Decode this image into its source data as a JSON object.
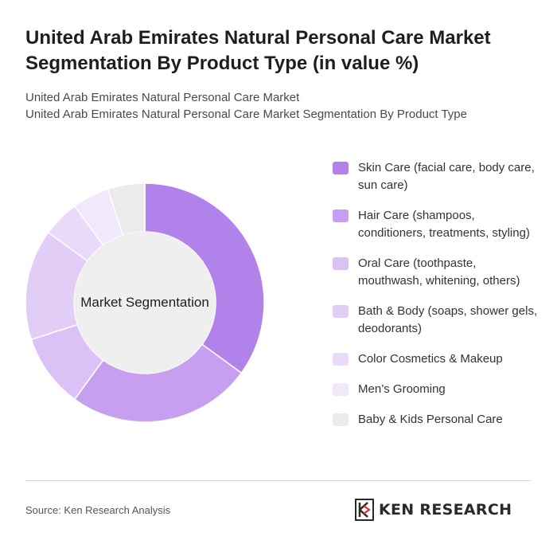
{
  "header": {
    "title": "United Arab Emirates Natural Personal Care Market Segmentation By Product Type (in value %)",
    "subtitle_line1": "United Arab Emirates Natural Personal Care Market",
    "subtitle_line2": "United Arab Emirates Natural Personal Care Market Segmentation By Product Type"
  },
  "chart_data": {
    "type": "pie",
    "center_label": "Market Segmentation",
    "categories": [
      "Skin Care (facial care, body care, sun care)",
      "Hair Care (shampoos, conditioners, treatments, styling)",
      "Oral Care (toothpaste, mouthwash, whitening, others)",
      "Bath & Body (soaps, shower gels, deodorants)",
      "Color Cosmetics & Makeup",
      "Men’s Grooming",
      "Baby & Kids Personal Care"
    ],
    "values": [
      35,
      25,
      10,
      15,
      5,
      5,
      5
    ],
    "colors": [
      "#b183ea",
      "#c79ff0",
      "#dcc1f6",
      "#e2cdf7",
      "#e9daf9",
      "#f1e9fb",
      "#ebebeb"
    ],
    "legend_position": "right"
  },
  "footer": {
    "source": "Source: Ken Research Analysis",
    "logo_text": "KEN RESEARCH",
    "logo_icon": "ken-research-logo-icon"
  }
}
